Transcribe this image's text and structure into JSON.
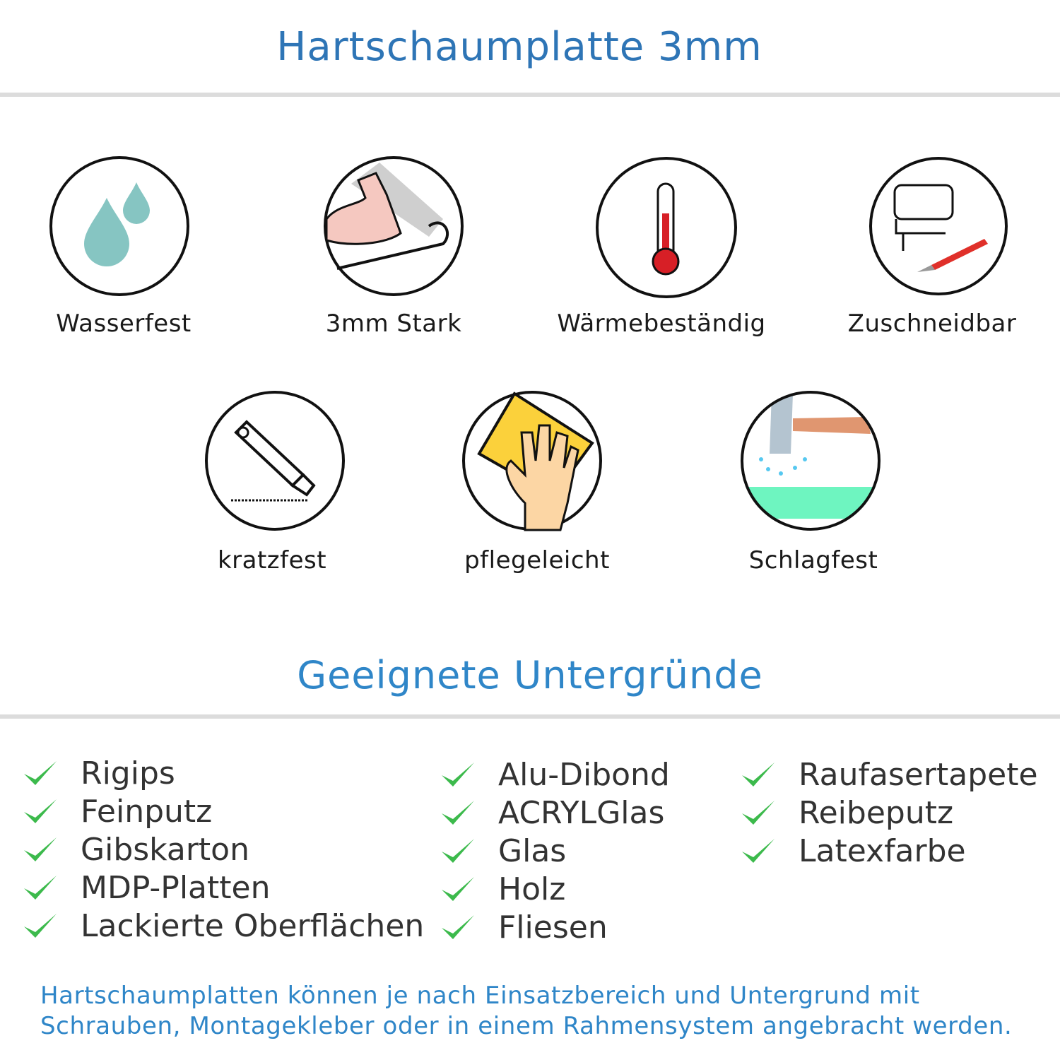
{
  "header": {
    "title": "Hartschaumplatte 3mm"
  },
  "features": [
    {
      "label": "Wasserfest",
      "icon": "water-drops-icon"
    },
    {
      "label": "3mm Stark",
      "icon": "strong-arm-icon"
    },
    {
      "label": "Wärmebeständig",
      "icon": "thermometer-icon"
    },
    {
      "label": "Zuschneidbar",
      "icon": "jigsaw-cutter-icon"
    },
    {
      "label": "kratzfest",
      "icon": "box-cutter-icon"
    },
    {
      "label": "pflegeleicht",
      "icon": "hand-cleaning-icon"
    },
    {
      "label": "Schlagfest",
      "icon": "hammer-icon"
    }
  ],
  "surfaces": {
    "title": "Geeignete Untergründe",
    "check_color": "#3cba4c",
    "columns": [
      [
        "Rigips",
        "Feinputz",
        "Gibskarton",
        "MDP-Platten",
        "Lackierte Oberflächen"
      ],
      [
        "Alu-Dibond",
        "ACRYLGlas",
        "Glas",
        "Holz",
        "Fliesen"
      ],
      [
        "Raufasertapete",
        "Reibeputz",
        "Latexfarbe"
      ]
    ]
  },
  "footer": {
    "line1": "Hartschaumplatten können je nach Einsatzbereich und Untergrund mit",
    "line2": "Schrauben, Montagekleber oder in einem Rahmensystem angebracht werden."
  },
  "colors": {
    "title": "#2e75b6",
    "accent": "#2f86c8"
  }
}
